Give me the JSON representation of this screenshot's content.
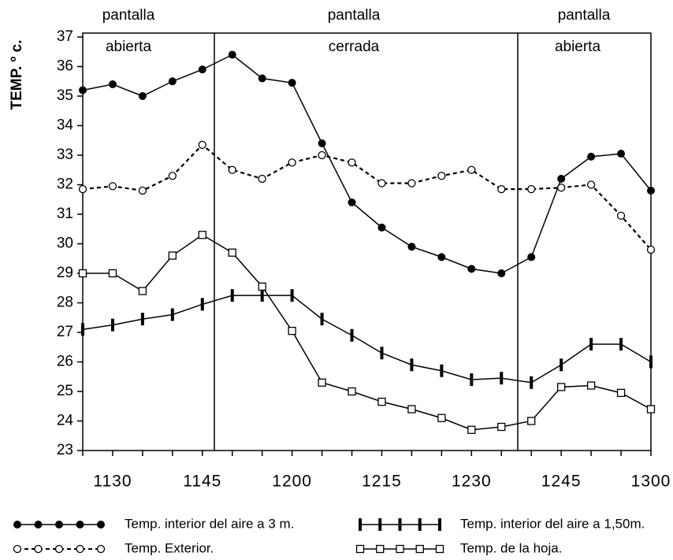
{
  "chart_data": {
    "type": "line",
    "y_label": "TEMP. º c.",
    "annotations": [
      "pantalla",
      "abierta",
      "pantalla",
      "cerrada",
      "pantalla",
      "abierta"
    ],
    "categories": [
      null,
      "1130",
      null,
      null,
      "1145",
      null,
      null,
      "1200",
      null,
      null,
      "1215",
      null,
      null,
      "1230",
      null,
      null,
      "1245",
      null,
      null,
      "1300"
    ],
    "ylim": [
      23,
      37
    ],
    "yticks": [
      23,
      24,
      25,
      26,
      27,
      28,
      29,
      30,
      31,
      32,
      33,
      34,
      35,
      36,
      37
    ],
    "series": [
      {
        "name": "Temp. interior del aire a 3 m.",
        "color": "#000000",
        "marker": "filled-circle",
        "line_style": "solid",
        "values": [
          35.2,
          35.4,
          35.0,
          35.5,
          35.9,
          36.4,
          35.6,
          35.45,
          33.4,
          31.4,
          30.55,
          29.9,
          29.55,
          29.15,
          29.0,
          29.55,
          32.2,
          32.95,
          33.05,
          31.8
        ]
      },
      {
        "name": "Temp. Exterior.",
        "color": "#000000",
        "marker": "open-circle",
        "line_style": "dotted",
        "values": [
          31.85,
          31.95,
          31.8,
          32.3,
          33.35,
          32.5,
          32.2,
          32.75,
          33.0,
          32.75,
          32.05,
          32.05,
          32.3,
          32.5,
          31.85,
          31.85,
          31.9,
          32.0,
          30.95,
          29.8
        ]
      },
      {
        "name": "Temp. interior del aire a 1,50m.",
        "color": "#000000",
        "marker": "bar-tick",
        "line_style": "solid",
        "values": [
          27.1,
          27.25,
          27.45,
          27.6,
          27.95,
          28.25,
          28.25,
          28.25,
          27.45,
          26.9,
          26.3,
          25.9,
          25.7,
          25.4,
          25.45,
          25.3,
          25.9,
          26.6,
          26.6,
          26.0
        ]
      },
      {
        "name": "Temp. de la hoja.",
        "color": "#000000",
        "marker": "open-square",
        "line_style": "solid",
        "values": [
          29.0,
          29.0,
          28.4,
          29.6,
          30.3,
          29.7,
          28.55,
          27.05,
          25.3,
          25.0,
          24.65,
          24.4,
          24.1,
          23.7,
          23.8,
          24.0,
          25.15,
          25.2,
          24.95,
          24.4
        ]
      }
    ]
  }
}
